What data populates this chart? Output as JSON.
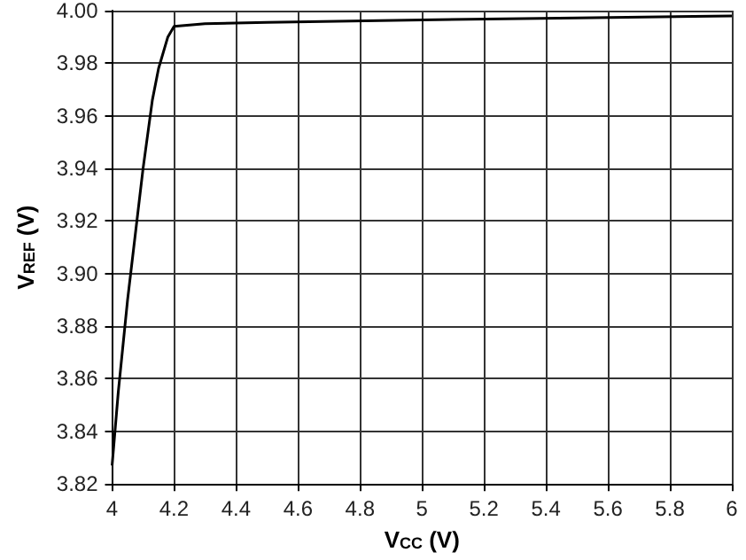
{
  "chart_data": {
    "type": "line",
    "xlabel": "V$_{CC}$ (V)",
    "ylabel": "V$_{REF}$ (V)",
    "series": [
      {
        "color": "#000000",
        "x": [
          4.0,
          4.02,
          4.05,
          4.08,
          4.1,
          4.13,
          4.15,
          4.18,
          4.2,
          4.3,
          4.5,
          5.0,
          5.5,
          6.0
        ],
        "values": [
          3.827,
          3.855,
          3.89,
          3.92,
          3.94,
          3.966,
          3.978,
          3.99,
          3.994,
          3.995,
          3.9955,
          3.9965,
          3.9972,
          3.998
        ]
      }
    ],
    "xlim": [
      4,
      6
    ],
    "xticks": [
      4,
      4.2,
      4.4,
      4.6,
      4.8,
      5,
      5.2,
      5.4,
      5.6,
      5.8,
      6
    ],
    "ylim": [
      3.82,
      4.0
    ],
    "yticks": [
      3.82,
      3.84,
      3.86,
      3.88,
      {
        "value": 3.9,
        "label": "3.90"
      },
      3.92,
      3.94,
      3.96,
      3.98,
      {
        "value": 4.0,
        "label": "4.00"
      }
    ],
    "grid": true,
    "marker": "none",
    "line_style": "solid"
  }
}
